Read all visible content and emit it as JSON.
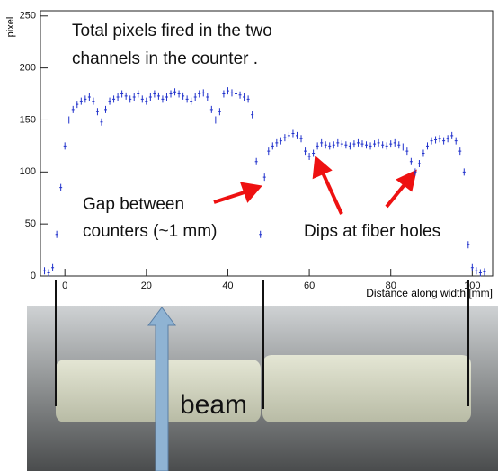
{
  "chart_data": {
    "type": "scatter",
    "title": [
      "Total pixels fired in the two",
      "channels in the counter ."
    ],
    "x_label": "Distance along width [mm]",
    "y_label": "pixel",
    "annotations": [
      "Gap between",
      "counters (~1 mm)",
      "Dips at fiber holes"
    ],
    "photo_label": "beam",
    "color": "#2233cc",
    "xlim": [
      -6,
      105
    ],
    "ylim": [
      0,
      255
    ],
    "xticks": [
      0,
      20,
      40,
      60,
      80,
      100
    ],
    "yticks": [
      0,
      50,
      100,
      150,
      200,
      250
    ],
    "grid": false,
    "x": [
      -5,
      -4,
      -3,
      -2,
      -1,
      0,
      1,
      2,
      3,
      4,
      5,
      6,
      7,
      8,
      9,
      10,
      11,
      12,
      13,
      14,
      15,
      16,
      17,
      18,
      19,
      20,
      21,
      22,
      23,
      24,
      25,
      26,
      27,
      28,
      29,
      30,
      31,
      32,
      33,
      34,
      35,
      36,
      37,
      38,
      39,
      40,
      41,
      42,
      43,
      44,
      45,
      46,
      47,
      48,
      49,
      50,
      51,
      52,
      53,
      54,
      55,
      56,
      57,
      58,
      59,
      60,
      61,
      62,
      63,
      64,
      65,
      66,
      67,
      68,
      69,
      70,
      71,
      72,
      73,
      74,
      75,
      76,
      77,
      78,
      79,
      80,
      81,
      82,
      83,
      84,
      85,
      86,
      87,
      88,
      89,
      90,
      91,
      92,
      93,
      94,
      95,
      96,
      97,
      98,
      99,
      100,
      101,
      102,
      103
    ],
    "values": [
      5,
      3,
      8,
      40,
      85,
      125,
      150,
      160,
      165,
      168,
      170,
      172,
      168,
      158,
      148,
      160,
      168,
      170,
      172,
      175,
      173,
      170,
      172,
      175,
      170,
      168,
      172,
      175,
      173,
      170,
      172,
      175,
      177,
      175,
      173,
      170,
      168,
      172,
      175,
      176,
      172,
      160,
      150,
      158,
      175,
      178,
      176,
      175,
      174,
      172,
      170,
      155,
      110,
      40,
      95,
      120,
      125,
      128,
      130,
      133,
      135,
      137,
      135,
      132,
      120,
      115,
      118,
      125,
      128,
      126,
      125,
      126,
      128,
      127,
      126,
      125,
      127,
      128,
      127,
      126,
      125,
      127,
      128,
      126,
      125,
      127,
      128,
      126,
      124,
      120,
      110,
      100,
      108,
      118,
      125,
      130,
      131,
      132,
      130,
      132,
      135,
      130,
      120,
      100,
      30,
      8,
      5,
      3,
      4
    ]
  }
}
